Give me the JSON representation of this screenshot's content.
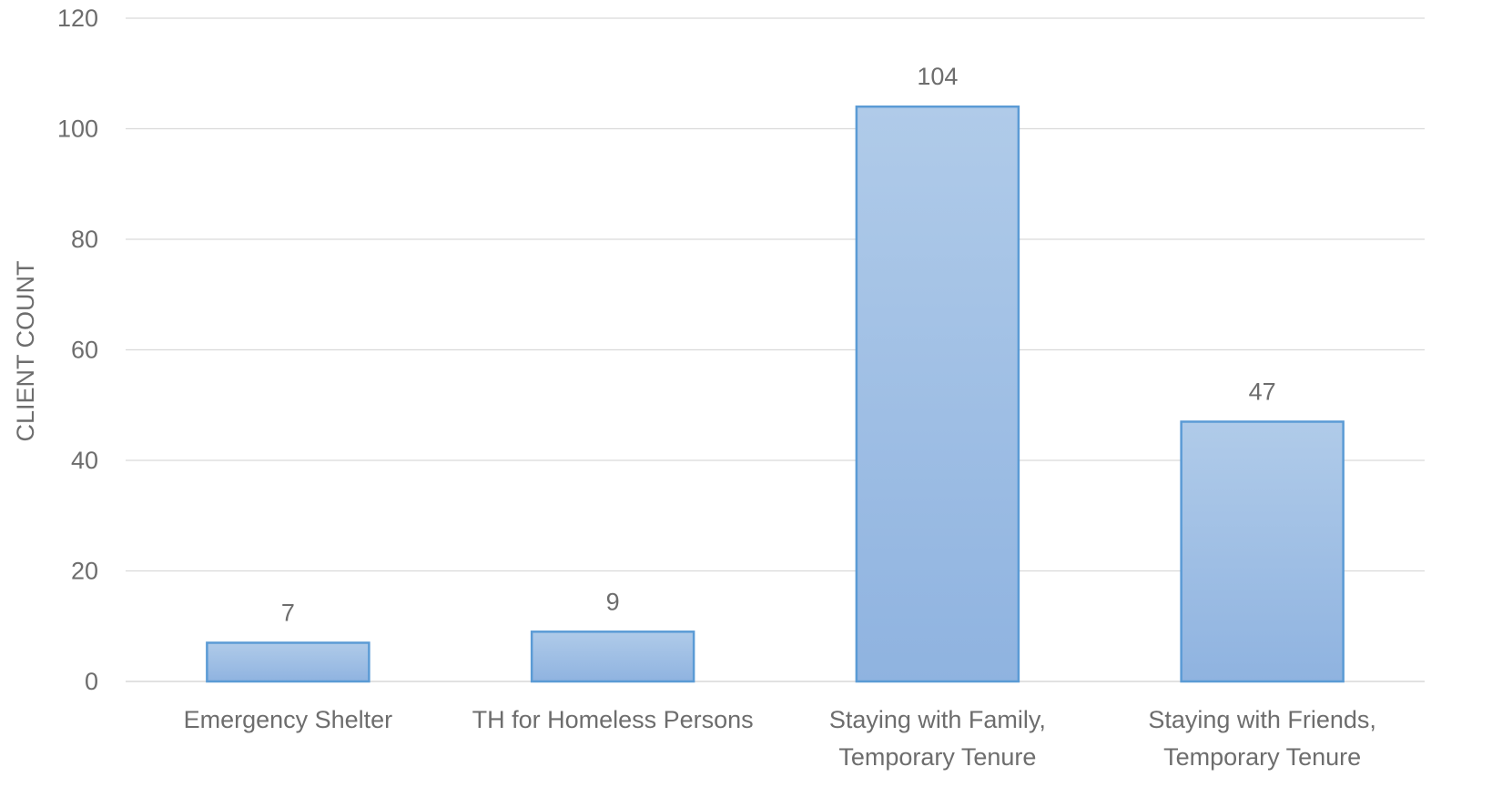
{
  "chart_data": {
    "type": "bar",
    "categories": [
      [
        "Emergency Shelter"
      ],
      [
        "TH for Homeless Persons"
      ],
      [
        "Staying with Family,",
        "Temporary Tenure"
      ],
      [
        "Staying with Friends,",
        "Temporary Tenure"
      ]
    ],
    "values": [
      7,
      9,
      104,
      47
    ],
    "data_labels": [
      "7",
      "9",
      "104",
      "47"
    ],
    "title": "",
    "xlabel": "",
    "ylabel": "CLIENT COUNT",
    "ylim": [
      0,
      120
    ],
    "yticks": [
      0,
      20,
      40,
      60,
      80,
      100,
      120
    ],
    "grid": true,
    "legend": "none",
    "colors": {
      "bar_fill_top": "#b0cbe9",
      "bar_fill_bottom": "#8fb3e0",
      "bar_stroke": "#5b9bd5",
      "gridline": "#d9d9d9",
      "text": "#6d6d6d"
    }
  }
}
